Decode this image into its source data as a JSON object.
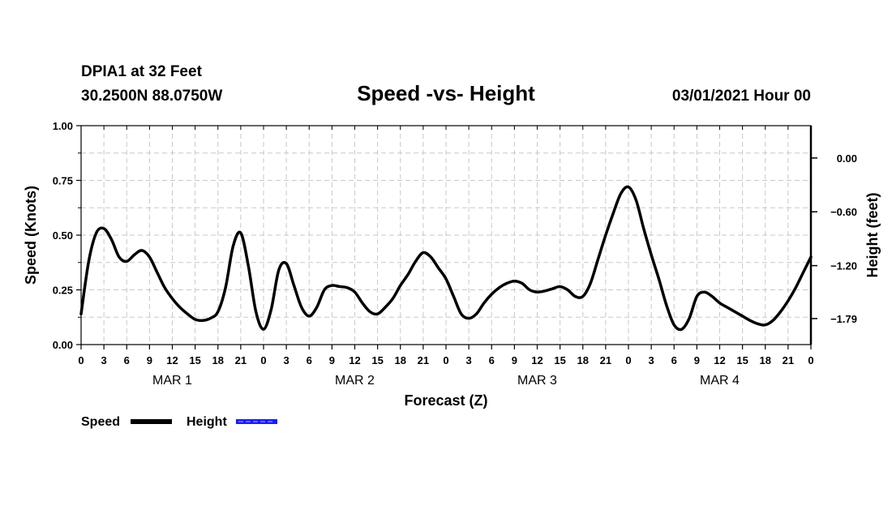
{
  "header": {
    "station": "DPIA1 at 32 Feet",
    "coords": "30.2500N 88.0750W",
    "title": "Speed -vs- Height",
    "datetime": "03/01/2021 Hour 00"
  },
  "legend": {
    "speed_label": "Speed",
    "height_label": "Height",
    "speed_color": "#000000",
    "height_color": "#1a1aff"
  },
  "chart_data": {
    "type": "line",
    "title": "Speed -vs- Height",
    "xlabel": "Forecast (Z)",
    "ylabel": "Speed (Knots)",
    "y2label": "Height (feet)",
    "xlim": [
      0,
      96
    ],
    "ylim": [
      0,
      1.0
    ],
    "y2lim": [
      -2.08,
      0.36
    ],
    "yticks": [
      {
        "v": 0.0,
        "label": "0.00"
      },
      {
        "v": 0.25,
        "label": "0.25"
      },
      {
        "v": 0.5,
        "label": "0.50"
      },
      {
        "v": 0.75,
        "label": "0.75"
      },
      {
        "v": 1.0,
        "label": "1.00"
      }
    ],
    "y2ticks": [
      {
        "v": 0.0,
        "label": "0.00"
      },
      {
        "v": -0.6,
        "label": "−0.60"
      },
      {
        "v": -1.2,
        "label": "−1.20"
      },
      {
        "v": -1.79,
        "label": "−1.79"
      }
    ],
    "xticks": [
      {
        "h": 0,
        "label": "0"
      },
      {
        "h": 3,
        "label": "3"
      },
      {
        "h": 6,
        "label": "6"
      },
      {
        "h": 9,
        "label": "9"
      },
      {
        "h": 12,
        "label": "12"
      },
      {
        "h": 15,
        "label": "15"
      },
      {
        "h": 18,
        "label": "18"
      },
      {
        "h": 21,
        "label": "21"
      },
      {
        "h": 24,
        "label": "0"
      },
      {
        "h": 27,
        "label": "3"
      },
      {
        "h": 30,
        "label": "6"
      },
      {
        "h": 33,
        "label": "9"
      },
      {
        "h": 36,
        "label": "12"
      },
      {
        "h": 39,
        "label": "15"
      },
      {
        "h": 42,
        "label": "18"
      },
      {
        "h": 45,
        "label": "21"
      },
      {
        "h": 48,
        "label": "0"
      },
      {
        "h": 51,
        "label": "3"
      },
      {
        "h": 54,
        "label": "6"
      },
      {
        "h": 57,
        "label": "9"
      },
      {
        "h": 60,
        "label": "12"
      },
      {
        "h": 63,
        "label": "15"
      },
      {
        "h": 66,
        "label": "18"
      },
      {
        "h": 69,
        "label": "21"
      },
      {
        "h": 72,
        "label": "0"
      },
      {
        "h": 75,
        "label": "3"
      },
      {
        "h": 78,
        "label": "6"
      },
      {
        "h": 81,
        "label": "9"
      },
      {
        "h": 84,
        "label": "12"
      },
      {
        "h": 87,
        "label": "15"
      },
      {
        "h": 90,
        "label": "18"
      },
      {
        "h": 93,
        "label": "21"
      },
      {
        "h": 96,
        "label": "0"
      }
    ],
    "day_labels": [
      {
        "h": 12,
        "label": "MAR 1"
      },
      {
        "h": 36,
        "label": "MAR 2"
      },
      {
        "h": 60,
        "label": "MAR 3"
      },
      {
        "h": 84,
        "label": "MAR 4"
      }
    ],
    "grid": true,
    "series": [
      {
        "name": "Speed",
        "color": "#000000",
        "x": [
          0,
          1,
          2,
          3,
          4,
          5,
          6,
          7,
          8,
          9,
          10,
          11,
          12,
          13,
          14,
          15,
          16,
          17,
          18,
          19,
          20,
          21,
          22,
          23,
          24,
          25,
          26,
          27,
          28,
          29,
          30,
          31,
          32,
          33,
          34,
          35,
          36,
          37,
          38,
          39,
          40,
          41,
          42,
          43,
          44,
          45,
          46,
          47,
          48,
          49,
          50,
          51,
          52,
          53,
          54,
          55,
          56,
          57,
          58,
          59,
          60,
          61,
          62,
          63,
          64,
          65,
          66,
          67,
          68,
          69,
          70,
          71,
          72,
          73,
          74,
          75,
          76,
          77,
          78,
          79,
          80,
          81,
          82,
          83,
          84,
          85,
          86,
          87,
          88,
          89,
          90,
          91,
          92,
          93,
          94,
          95,
          96
        ],
        "values": [
          0.14,
          0.38,
          0.51,
          0.53,
          0.48,
          0.4,
          0.38,
          0.41,
          0.43,
          0.4,
          0.33,
          0.26,
          0.21,
          0.17,
          0.14,
          0.115,
          0.11,
          0.12,
          0.15,
          0.26,
          0.45,
          0.51,
          0.36,
          0.15,
          0.07,
          0.16,
          0.34,
          0.37,
          0.27,
          0.17,
          0.13,
          0.17,
          0.25,
          0.27,
          0.265,
          0.26,
          0.24,
          0.19,
          0.15,
          0.14,
          0.17,
          0.21,
          0.27,
          0.32,
          0.38,
          0.42,
          0.4,
          0.35,
          0.3,
          0.22,
          0.14,
          0.12,
          0.14,
          0.19,
          0.23,
          0.26,
          0.28,
          0.29,
          0.28,
          0.25,
          0.24,
          0.245,
          0.255,
          0.265,
          0.25,
          0.22,
          0.22,
          0.28,
          0.39,
          0.5,
          0.6,
          0.69,
          0.72,
          0.66,
          0.53,
          0.41,
          0.3,
          0.18,
          0.09,
          0.07,
          0.12,
          0.22,
          0.24,
          0.22,
          0.19,
          0.17,
          0.15,
          0.13,
          0.11,
          0.095,
          0.09,
          0.11,
          0.15,
          0.2,
          0.26,
          0.33,
          0.4
        ]
      },
      {
        "name": "Height",
        "color": "#1a1aff",
        "x": [],
        "values": []
      }
    ]
  }
}
